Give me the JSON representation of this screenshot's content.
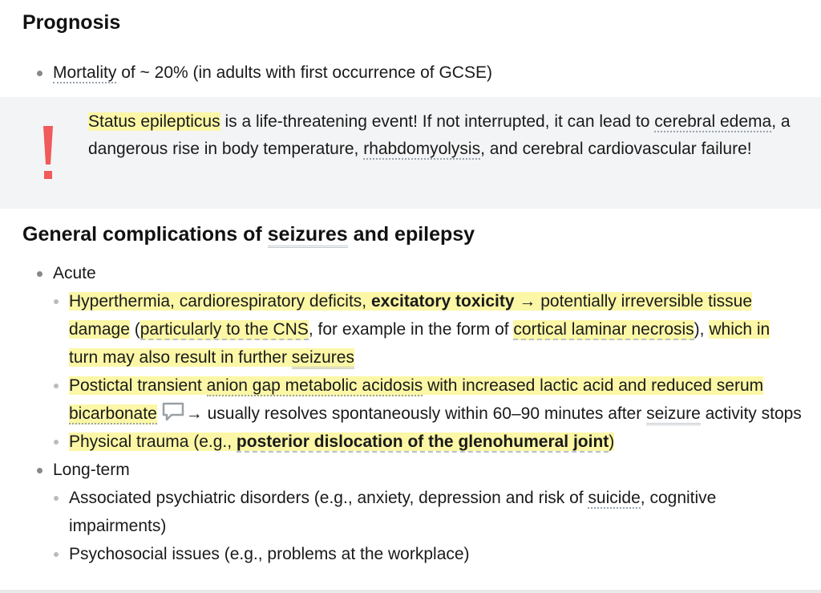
{
  "prognosis": {
    "heading": "Prognosis",
    "bullet": {
      "p1": "Mortality",
      "p2": " of ~ 20% (in adults with first occurrence of GCSE)"
    }
  },
  "alert": {
    "icon": "exclamation-icon",
    "color": "#f05a5a",
    "p1": "Status epilepticus",
    "p2": " is a life-threatening event! If not interrupted, it can lead to ",
    "p3": "cerebral edema",
    "p4": ", a dangerous rise in body temperature, ",
    "p5": "rhabdomyolysis",
    "p6": ", and cerebral cardiovascular failure!"
  },
  "complications": {
    "heading_p1": "General complications of ",
    "heading_p2": "seizures",
    "heading_p3": " and epilepsy",
    "acute": {
      "label": "Acute",
      "item1": {
        "p1": "Hyperthermia, cardiorespiratory deficits, ",
        "p2": "excitatory toxicity",
        "p3": " → potentially irreversible tissue damage",
        "p4": " (",
        "p5": "particularly to the CNS",
        "p6": ", for example in the form of ",
        "p7": "cortical laminar necrosis",
        "p8": "), ",
        "p9": "which in turn may also result in further ",
        "p10": "seizures"
      },
      "item2": {
        "p1": "Postictal transient ",
        "p2": "anion gap metabolic acidosis",
        "p3": " with increased lactic acid and reduced serum ",
        "p4": "bicarbonate",
        "p5": "→ usually resolves spontaneously within 60–90 minutes after ",
        "p6": "seizure",
        "p7": " activity stops"
      },
      "item3": {
        "p1": "Physical trauma (e.g., ",
        "p2": "posterior dislocation of the glenohumeral joint",
        "p3": ")"
      }
    },
    "longterm": {
      "label": "Long-term",
      "item1": {
        "p1": "Associated psychiatric disorders (e.g., anxiety, depression and risk of ",
        "p2": "suicide",
        "p3": ", cognitive impairments)"
      },
      "item2": {
        "p1": "Psychosocial issues (e.g., problems at the workplace)"
      }
    }
  },
  "colors": {
    "highlight": "#fbf7a6",
    "alert_background": "#f3f4f5"
  }
}
